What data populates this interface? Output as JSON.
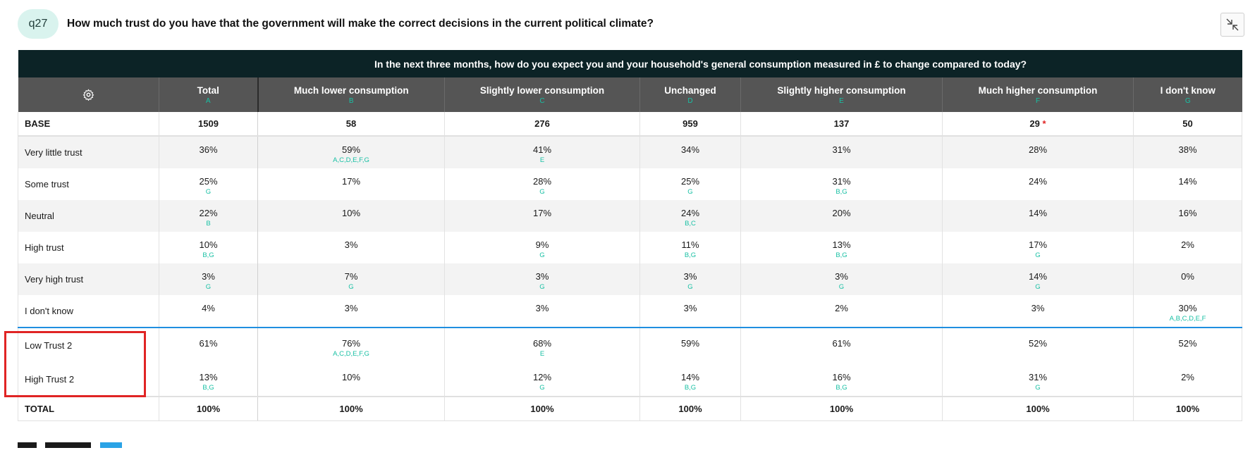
{
  "question": {
    "tag": "q27",
    "text": "How much trust do you have that the government will make the correct decisions in the current political climate?"
  },
  "table": {
    "banner": "In the next three months, how do you expect you and your household's general consumption measured in £ to change compared to today?",
    "columns": [
      {
        "label": "Total",
        "letter": "A"
      },
      {
        "label": "Much lower consumption",
        "letter": "B"
      },
      {
        "label": "Slightly lower consumption",
        "letter": "C"
      },
      {
        "label": "Unchanged",
        "letter": "D"
      },
      {
        "label": "Slightly higher consumption",
        "letter": "E"
      },
      {
        "label": "Much higher consumption",
        "letter": "F"
      },
      {
        "label": "I don't know",
        "letter": "G"
      }
    ],
    "base": {
      "label": "BASE",
      "values": [
        "1509",
        "58",
        "276",
        "959",
        "137",
        "29",
        "50"
      ],
      "low_base_marker": "*"
    },
    "rows": [
      {
        "label": "Very little trust",
        "values": [
          "36%",
          "59%",
          "41%",
          "34%",
          "31%",
          "28%",
          "38%"
        ],
        "sig": [
          "",
          "A,C,D,E,F,G",
          "E",
          "",
          "",
          "",
          ""
        ]
      },
      {
        "label": "Some trust",
        "values": [
          "25%",
          "17%",
          "28%",
          "25%",
          "31%",
          "24%",
          "14%"
        ],
        "sig": [
          "G",
          "",
          "G",
          "G",
          "B,G",
          "",
          ""
        ]
      },
      {
        "label": "Neutral",
        "values": [
          "22%",
          "10%",
          "17%",
          "24%",
          "20%",
          "14%",
          "16%"
        ],
        "sig": [
          "B",
          "",
          "",
          "B,C",
          "",
          "",
          ""
        ]
      },
      {
        "label": "High trust",
        "values": [
          "10%",
          "3%",
          "9%",
          "11%",
          "13%",
          "17%",
          "2%"
        ],
        "sig": [
          "B,G",
          "",
          "G",
          "B,G",
          "B,G",
          "G",
          ""
        ]
      },
      {
        "label": "Very high trust",
        "values": [
          "3%",
          "7%",
          "3%",
          "3%",
          "3%",
          "14%",
          "0%"
        ],
        "sig": [
          "G",
          "G",
          "G",
          "G",
          "G",
          "G",
          ""
        ]
      },
      {
        "label": "I don't know",
        "values": [
          "4%",
          "3%",
          "3%",
          "3%",
          "2%",
          "3%",
          "30%"
        ],
        "sig": [
          "",
          "",
          "",
          "",
          "",
          "",
          "A,B,C,D,E,F"
        ]
      }
    ],
    "summary_rows": [
      {
        "label": "Low Trust 2",
        "values": [
          "61%",
          "76%",
          "68%",
          "59%",
          "61%",
          "52%",
          "52%"
        ],
        "sig": [
          "",
          "A,C,D,E,F,G",
          "E",
          "",
          "",
          "",
          ""
        ]
      },
      {
        "label": "High Trust 2",
        "values": [
          "13%",
          "10%",
          "12%",
          "14%",
          "16%",
          "31%",
          "2%"
        ],
        "sig": [
          "B,G",
          "",
          "G",
          "B,G",
          "B,G",
          "G",
          ""
        ]
      }
    ],
    "total": {
      "label": "TOTAL",
      "values": [
        "100%",
        "100%",
        "100%",
        "100%",
        "100%",
        "100%",
        "100%"
      ]
    }
  },
  "colors": {
    "accent": "#19c0a4",
    "highlight_box": "#e02424",
    "header_dark": "#0c2326",
    "header_grey": "#555555"
  }
}
